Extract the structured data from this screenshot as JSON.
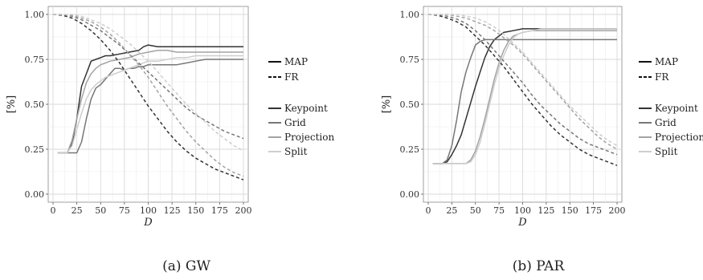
{
  "chart_data": [
    {
      "type": "line",
      "caption": "(a) GW",
      "xlabel": "D",
      "ylabel": "[%]",
      "xlim": [
        0,
        200
      ],
      "ylim": [
        0,
        1
      ],
      "xticks": [
        "0",
        "25",
        "50",
        "75",
        "100",
        "125",
        "150",
        "175",
        "200"
      ],
      "yticks": [
        "0.00",
        "0.25",
        "0.50",
        "0.75",
        "1.00"
      ],
      "grid": true,
      "legend_placement": "right",
      "linetype_legend": [
        "MAP",
        "FR"
      ],
      "color_legend": [
        "Keypoint",
        "Grid",
        "Projection",
        "Split"
      ],
      "colors": {
        "Keypoint": "#333333",
        "Grid": "#777777",
        "Projection": "#a3a3a3",
        "Split": "#cdcdcd"
      },
      "series": [
        {
          "name": "Keypoint",
          "metric": "MAP",
          "color": "#333333",
          "dashed": false,
          "x": [
            5,
            10,
            15,
            20,
            25,
            30,
            35,
            40,
            45,
            50,
            55,
            60,
            70,
            80,
            90,
            95,
            100,
            110,
            120,
            130,
            140,
            150,
            160,
            170,
            180,
            190,
            200
          ],
          "y": [
            0.23,
            0.23,
            0.23,
            0.28,
            0.42,
            0.6,
            0.67,
            0.74,
            0.75,
            0.76,
            0.77,
            0.77,
            0.78,
            0.79,
            0.8,
            0.82,
            0.83,
            0.82,
            0.82,
            0.82,
            0.82,
            0.82,
            0.82,
            0.82,
            0.82,
            0.82,
            0.82
          ]
        },
        {
          "name": "Grid",
          "metric": "MAP",
          "color": "#777777",
          "dashed": false,
          "x": [
            5,
            10,
            15,
            20,
            25,
            30,
            35,
            40,
            45,
            50,
            55,
            60,
            65,
            70,
            75,
            80,
            85,
            90,
            95,
            100,
            110,
            120,
            130,
            140,
            150,
            160,
            170,
            180,
            190,
            200
          ],
          "y": [
            0.23,
            0.23,
            0.23,
            0.23,
            0.23,
            0.29,
            0.42,
            0.53,
            0.59,
            0.61,
            0.64,
            0.67,
            0.7,
            0.7,
            0.69,
            0.7,
            0.7,
            0.71,
            0.71,
            0.72,
            0.72,
            0.72,
            0.72,
            0.73,
            0.74,
            0.75,
            0.75,
            0.75,
            0.75,
            0.75
          ]
        },
        {
          "name": "Projection",
          "metric": "MAP",
          "color": "#a3a3a3",
          "dashed": false,
          "x": [
            5,
            10,
            15,
            20,
            25,
            30,
            35,
            40,
            45,
            50,
            55,
            60,
            70,
            80,
            90,
            100,
            110,
            120,
            130,
            140,
            150,
            160,
            170,
            180,
            190,
            200
          ],
          "y": [
            0.23,
            0.23,
            0.23,
            0.3,
            0.42,
            0.53,
            0.62,
            0.67,
            0.7,
            0.72,
            0.73,
            0.74,
            0.75,
            0.76,
            0.78,
            0.79,
            0.8,
            0.8,
            0.79,
            0.79,
            0.79,
            0.79,
            0.79,
            0.79,
            0.79,
            0.79
          ]
        },
        {
          "name": "Split",
          "metric": "MAP",
          "color": "#cdcdcd",
          "dashed": false,
          "x": [
            5,
            10,
            15,
            20,
            25,
            30,
            35,
            40,
            45,
            50,
            55,
            60,
            70,
            80,
            90,
            100,
            110,
            120,
            130,
            140,
            150,
            160,
            170,
            180,
            190,
            200
          ],
          "y": [
            0.23,
            0.23,
            0.23,
            0.27,
            0.36,
            0.45,
            0.53,
            0.58,
            0.61,
            0.63,
            0.65,
            0.66,
            0.68,
            0.7,
            0.72,
            0.74,
            0.74,
            0.75,
            0.76,
            0.76,
            0.77,
            0.77,
            0.77,
            0.77,
            0.77,
            0.77
          ]
        },
        {
          "name": "Keypoint",
          "metric": "FR",
          "color": "#333333",
          "dashed": true,
          "x": [
            0,
            10,
            20,
            30,
            40,
            50,
            60,
            70,
            80,
            90,
            100,
            110,
            120,
            130,
            140,
            150,
            160,
            170,
            180,
            190,
            200
          ],
          "y": [
            1.0,
            0.995,
            0.98,
            0.95,
            0.91,
            0.86,
            0.8,
            0.73,
            0.65,
            0.57,
            0.49,
            0.42,
            0.35,
            0.29,
            0.24,
            0.2,
            0.17,
            0.14,
            0.12,
            0.1,
            0.08
          ]
        },
        {
          "name": "Grid",
          "metric": "FR",
          "color": "#777777",
          "dashed": true,
          "x": [
            0,
            10,
            20,
            30,
            40,
            50,
            60,
            70,
            80,
            90,
            100,
            110,
            120,
            130,
            140,
            150,
            160,
            170,
            180,
            190,
            200
          ],
          "y": [
            1.0,
            1.0,
            0.99,
            0.97,
            0.94,
            0.91,
            0.87,
            0.83,
            0.78,
            0.73,
            0.68,
            0.63,
            0.58,
            0.53,
            0.48,
            0.44,
            0.41,
            0.38,
            0.35,
            0.33,
            0.31
          ]
        },
        {
          "name": "Projection",
          "metric": "FR",
          "color": "#a3a3a3",
          "dashed": true,
          "x": [
            0,
            10,
            20,
            30,
            40,
            50,
            60,
            70,
            80,
            90,
            100,
            110,
            120,
            130,
            140,
            150,
            160,
            170,
            180,
            190,
            200
          ],
          "y": [
            1.0,
            1.0,
            0.995,
            0.98,
            0.96,
            0.93,
            0.89,
            0.84,
            0.78,
            0.72,
            0.65,
            0.57,
            0.49,
            0.42,
            0.35,
            0.29,
            0.24,
            0.19,
            0.15,
            0.12,
            0.1
          ]
        },
        {
          "name": "Split",
          "metric": "FR",
          "color": "#cdcdcd",
          "dashed": true,
          "x": [
            0,
            10,
            20,
            30,
            40,
            50,
            60,
            70,
            80,
            90,
            100,
            110,
            120,
            130,
            140,
            150,
            160,
            170,
            180,
            190,
            200
          ],
          "y": [
            1.0,
            1.0,
            1.0,
            0.99,
            0.97,
            0.95,
            0.92,
            0.88,
            0.84,
            0.79,
            0.74,
            0.68,
            0.62,
            0.56,
            0.5,
            0.45,
            0.4,
            0.35,
            0.31,
            0.27,
            0.24
          ]
        }
      ]
    },
    {
      "type": "line",
      "caption": "(b) PAR",
      "xlabel": "D",
      "ylabel": "[%]",
      "xlim": [
        0,
        200
      ],
      "ylim": [
        0,
        1
      ],
      "xticks": [
        "0",
        "25",
        "50",
        "75",
        "100",
        "125",
        "150",
        "175",
        "200"
      ],
      "yticks": [
        "0.00",
        "0.25",
        "0.50",
        "0.75",
        "1.00"
      ],
      "grid": true,
      "legend_placement": "right",
      "linetype_legend": [
        "MAP",
        "FR"
      ],
      "color_legend": [
        "Keypoint",
        "Grid",
        "Projection",
        "Split"
      ],
      "colors": {
        "Keypoint": "#333333",
        "Grid": "#777777",
        "Projection": "#a3a3a3",
        "Split": "#cdcdcd"
      },
      "series": [
        {
          "name": "Keypoint",
          "metric": "MAP",
          "color": "#333333",
          "dashed": false,
          "x": [
            5,
            10,
            15,
            20,
            25,
            30,
            35,
            40,
            45,
            50,
            55,
            60,
            65,
            70,
            75,
            80,
            90,
            100,
            110,
            120,
            130,
            140,
            150,
            160,
            170,
            180,
            190,
            200
          ],
          "y": [
            0.17,
            0.17,
            0.17,
            0.18,
            0.22,
            0.27,
            0.33,
            0.42,
            0.51,
            0.6,
            0.68,
            0.76,
            0.82,
            0.86,
            0.88,
            0.9,
            0.91,
            0.92,
            0.92,
            0.92,
            0.92,
            0.92,
            0.92,
            0.92,
            0.92,
            0.92,
            0.92,
            0.92
          ]
        },
        {
          "name": "Grid",
          "metric": "MAP",
          "color": "#777777",
          "dashed": false,
          "x": [
            5,
            10,
            15,
            20,
            25,
            30,
            35,
            40,
            45,
            50,
            55,
            60,
            65,
            70,
            75,
            80,
            90,
            100,
            120,
            140,
            160,
            180,
            200
          ],
          "y": [
            0.17,
            0.17,
            0.17,
            0.19,
            0.27,
            0.41,
            0.57,
            0.68,
            0.76,
            0.83,
            0.85,
            0.86,
            0.86,
            0.86,
            0.86,
            0.86,
            0.86,
            0.86,
            0.86,
            0.86,
            0.86,
            0.86,
            0.86
          ]
        },
        {
          "name": "Projection",
          "metric": "MAP",
          "color": "#a3a3a3",
          "dashed": false,
          "x": [
            5,
            10,
            15,
            20,
            25,
            30,
            35,
            40,
            45,
            50,
            55,
            60,
            65,
            70,
            75,
            80,
            85,
            90,
            95,
            100,
            110,
            120,
            130,
            140,
            160,
            180,
            200
          ],
          "y": [
            0.17,
            0.17,
            0.17,
            0.17,
            0.17,
            0.17,
            0.17,
            0.17,
            0.19,
            0.24,
            0.32,
            0.42,
            0.53,
            0.64,
            0.73,
            0.8,
            0.85,
            0.88,
            0.89,
            0.9,
            0.91,
            0.91,
            0.91,
            0.91,
            0.91,
            0.91,
            0.91
          ]
        },
        {
          "name": "Split",
          "metric": "MAP",
          "color": "#cdcdcd",
          "dashed": false,
          "x": [
            5,
            10,
            15,
            20,
            25,
            30,
            35,
            40,
            45,
            50,
            55,
            60,
            65,
            70,
            75,
            80,
            85,
            90,
            95,
            100,
            110,
            120,
            130,
            140,
            160,
            180,
            200
          ],
          "y": [
            0.17,
            0.17,
            0.17,
            0.17,
            0.17,
            0.17,
            0.17,
            0.17,
            0.18,
            0.22,
            0.29,
            0.39,
            0.5,
            0.61,
            0.7,
            0.77,
            0.83,
            0.87,
            0.89,
            0.9,
            0.91,
            0.92,
            0.92,
            0.92,
            0.92,
            0.92,
            0.92
          ]
        },
        {
          "name": "Keypoint",
          "metric": "FR",
          "color": "#333333",
          "dashed": true,
          "x": [
            0,
            10,
            20,
            30,
            40,
            50,
            60,
            70,
            80,
            90,
            100,
            110,
            120,
            130,
            140,
            150,
            160,
            170,
            180,
            190,
            200
          ],
          "y": [
            1.0,
            0.995,
            0.98,
            0.96,
            0.93,
            0.88,
            0.83,
            0.77,
            0.71,
            0.64,
            0.57,
            0.5,
            0.44,
            0.38,
            0.33,
            0.29,
            0.25,
            0.22,
            0.2,
            0.18,
            0.16
          ]
        },
        {
          "name": "Grid",
          "metric": "FR",
          "color": "#777777",
          "dashed": true,
          "x": [
            0,
            10,
            20,
            30,
            40,
            50,
            60,
            70,
            80,
            90,
            100,
            110,
            120,
            130,
            140,
            150,
            160,
            170,
            180,
            190,
            200
          ],
          "y": [
            1.0,
            1.0,
            0.99,
            0.975,
            0.95,
            0.91,
            0.86,
            0.8,
            0.74,
            0.68,
            0.62,
            0.55,
            0.49,
            0.44,
            0.39,
            0.35,
            0.31,
            0.28,
            0.26,
            0.24,
            0.22
          ]
        },
        {
          "name": "Projection",
          "metric": "FR",
          "color": "#a3a3a3",
          "dashed": true,
          "x": [
            0,
            10,
            20,
            30,
            40,
            50,
            60,
            70,
            80,
            90,
            100,
            110,
            120,
            130,
            140,
            150,
            160,
            170,
            180,
            190,
            200
          ],
          "y": [
            1.0,
            1.0,
            1.0,
            0.99,
            0.98,
            0.96,
            0.94,
            0.91,
            0.87,
            0.83,
            0.78,
            0.72,
            0.66,
            0.6,
            0.54,
            0.48,
            0.42,
            0.37,
            0.32,
            0.28,
            0.25
          ]
        },
        {
          "name": "Split",
          "metric": "FR",
          "color": "#cdcdcd",
          "dashed": true,
          "x": [
            0,
            10,
            20,
            30,
            40,
            50,
            60,
            70,
            80,
            90,
            100,
            110,
            120,
            130,
            140,
            150,
            160,
            170,
            180,
            190,
            200
          ],
          "y": [
            1.0,
            1.0,
            1.0,
            1.0,
            0.99,
            0.98,
            0.96,
            0.93,
            0.89,
            0.84,
            0.79,
            0.73,
            0.67,
            0.61,
            0.55,
            0.49,
            0.44,
            0.39,
            0.34,
            0.3,
            0.27
          ]
        }
      ]
    }
  ]
}
